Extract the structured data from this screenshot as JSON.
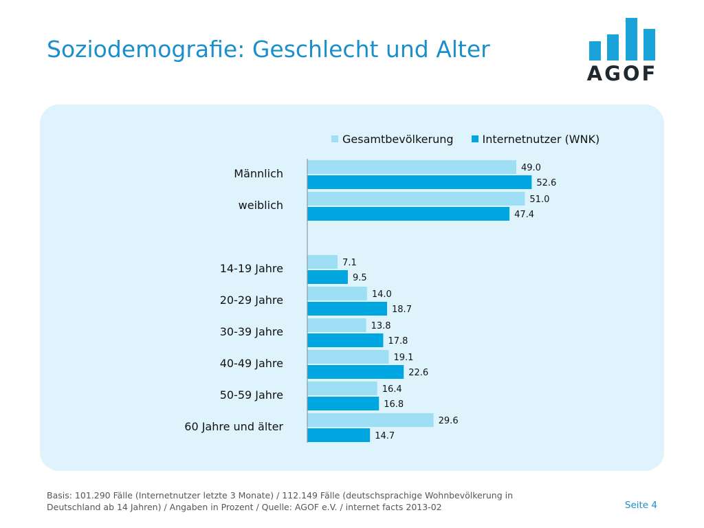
{
  "page": {
    "title": "Soziodemografie: Geschlecht und Alter",
    "logo_text": "AGOF",
    "footer_note": "Basis: 101.290 Fälle (Internetnutzer letzte 3 Monate) / 112.149 Fälle (deutschsprachige Wohnbevölkerung in Deutschland ab 14 Jahren) / Angaben in Prozent / Quelle: AGOF e.V. / internet facts 2013-02",
    "page_number": "Seite 4"
  },
  "colors": {
    "brand": "#1a8fc9",
    "series_1": "#9edff6",
    "series_2": "#00a6df",
    "panel": "#dff3fc"
  },
  "chart_data": {
    "type": "bar",
    "orientation": "horizontal",
    "categories": [
      "Männlich",
      "weiblich",
      "14-19 Jahre",
      "20-29 Jahre",
      "30-39 Jahre",
      "40-49 Jahre",
      "50-59 Jahre",
      "60 Jahre und älter"
    ],
    "groups": [
      {
        "categories": [
          "Männlich",
          "weiblich"
        ]
      },
      {
        "categories": [
          "14-19 Jahre",
          "20-29 Jahre",
          "30-39 Jahre",
          "40-49 Jahre",
          "50-59 Jahre",
          "60 Jahre und älter"
        ]
      }
    ],
    "series": [
      {
        "name": "Gesamtbevölkerung",
        "color": "#9edff6",
        "values": [
          49.0,
          51.0,
          7.1,
          14.0,
          13.8,
          19.1,
          16.4,
          29.6
        ]
      },
      {
        "name": "Internetnutzer (WNK)",
        "color": "#00a6df",
        "values": [
          52.6,
          47.4,
          9.5,
          18.7,
          17.8,
          22.6,
          16.8,
          14.7
        ]
      }
    ],
    "value_format": "0.0",
    "xlim": [
      0,
      60
    ],
    "grid": false,
    "legend_position": "top-right",
    "title": "",
    "xlabel": "",
    "ylabel": ""
  }
}
